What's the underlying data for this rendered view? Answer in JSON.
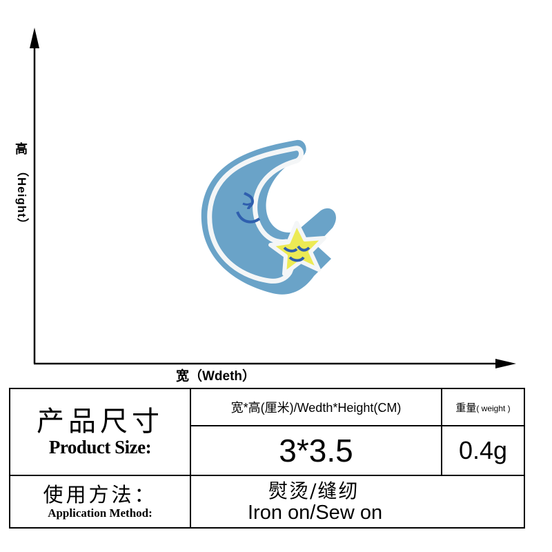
{
  "diagram": {
    "y_label_cn": "高",
    "y_label_en": "（Height）",
    "x_label": "宽（Wdeth）"
  },
  "table": {
    "title_cn": "产品尺寸",
    "title_en": "Product Size:",
    "size_header": "宽*高(厘米)/Wedth*Height(CM)",
    "weight_header_cn": "重量",
    "weight_header_en": "( weight )",
    "size_value": "3*3.5",
    "weight_value": "0.4g",
    "method_cn": "使用方法：",
    "method_en": "Application Method:",
    "method_value_cn": "熨烫/缝纫",
    "method_value_en": "Iron on/Sew on"
  },
  "colors": {
    "patch_blue": "#6aa3c8",
    "border_white": "#f4f6f7",
    "star_yellow": "#ecea54",
    "stitch_blue": "#2f5fae"
  }
}
